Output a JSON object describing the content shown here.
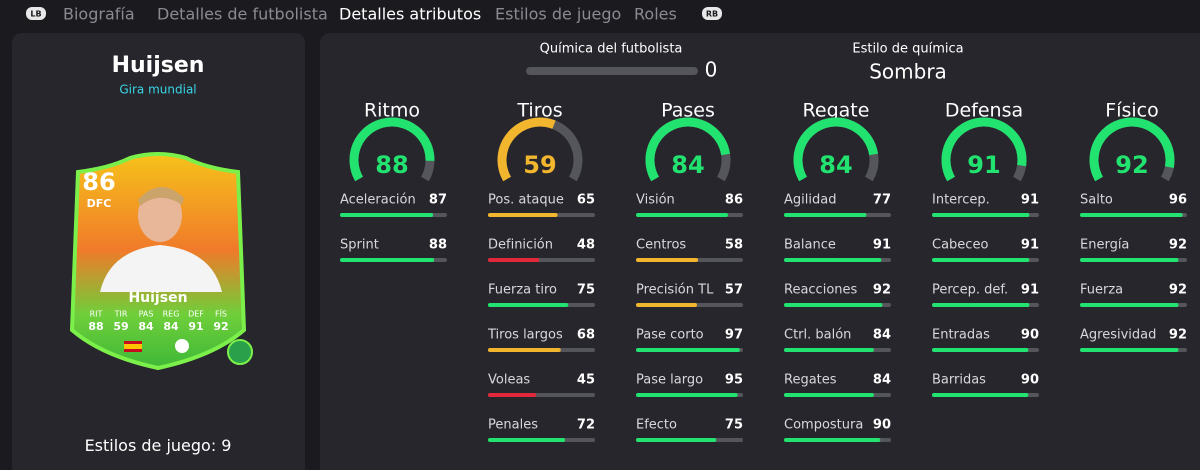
{
  "tabs": {
    "buttons": [
      "LB",
      "RB"
    ],
    "items": [
      "Biografía",
      "Detalles de futbolista",
      "Detalles atributos",
      "Estilos de juego",
      "Roles"
    ],
    "active": 2
  },
  "player": {
    "name": "Huijsen",
    "promo": "Gira mundial",
    "card": {
      "rating": 86,
      "position": "DFC",
      "name": "Huijsen",
      "stat_labels": [
        "RIT",
        "TIR",
        "PAS",
        "REG",
        "DEF",
        "FÍS"
      ],
      "stat_values": [
        88,
        59,
        84,
        84,
        91,
        92
      ]
    },
    "playstyles_label": "Estilos de juego:",
    "playstyles_count": 9
  },
  "chemistry": {
    "label": "Química del futbolista",
    "value": 0,
    "style_label": "Estilo de química",
    "style": "Sombra"
  },
  "categories": [
    {
      "name": "Ritmo",
      "value": 88,
      "color": "#22e36f",
      "attributes": [
        {
          "name": "Aceleración",
          "value": 87,
          "color": "#22e36f"
        },
        {
          "name": "Sprint",
          "value": 88,
          "color": "#22e36f"
        }
      ]
    },
    {
      "name": "Tiros",
      "value": 59,
      "color": "#f1b52e",
      "attributes": [
        {
          "name": "Pos. ataque",
          "value": 65,
          "color": "#f1b52e"
        },
        {
          "name": "Definición",
          "value": 48,
          "color": "#e2283a"
        },
        {
          "name": "Fuerza tiro",
          "value": 75,
          "color": "#22e36f"
        },
        {
          "name": "Tiros largos",
          "value": 68,
          "color": "#f1b52e"
        },
        {
          "name": "Voleas",
          "value": 45,
          "color": "#e2283a"
        },
        {
          "name": "Penales",
          "value": 72,
          "color": "#22e36f"
        }
      ]
    },
    {
      "name": "Pases",
      "value": 84,
      "color": "#22e36f",
      "attributes": [
        {
          "name": "Visión",
          "value": 86,
          "color": "#22e36f"
        },
        {
          "name": "Centros",
          "value": 58,
          "color": "#f1b52e"
        },
        {
          "name": "Precisión TL",
          "value": 57,
          "color": "#f1b52e"
        },
        {
          "name": "Pase corto",
          "value": 97,
          "color": "#22e36f"
        },
        {
          "name": "Pase largo",
          "value": 95,
          "color": "#22e36f"
        },
        {
          "name": "Efecto",
          "value": 75,
          "color": "#22e36f"
        }
      ]
    },
    {
      "name": "Regate",
      "value": 84,
      "color": "#22e36f",
      "attributes": [
        {
          "name": "Agilidad",
          "value": 77,
          "color": "#22e36f"
        },
        {
          "name": "Balance",
          "value": 91,
          "color": "#22e36f"
        },
        {
          "name": "Reacciones",
          "value": 92,
          "color": "#22e36f"
        },
        {
          "name": "Ctrl. balón",
          "value": 84,
          "color": "#22e36f"
        },
        {
          "name": "Regates",
          "value": 84,
          "color": "#22e36f"
        },
        {
          "name": "Compostura",
          "value": 90,
          "color": "#22e36f"
        }
      ]
    },
    {
      "name": "Defensa",
      "value": 91,
      "color": "#22e36f",
      "attributes": [
        {
          "name": "Intercep.",
          "value": 91,
          "color": "#22e36f"
        },
        {
          "name": "Cabeceo",
          "value": 91,
          "color": "#22e36f"
        },
        {
          "name": "Percep. def.",
          "value": 91,
          "color": "#22e36f"
        },
        {
          "name": "Entradas",
          "value": 90,
          "color": "#22e36f"
        },
        {
          "name": "Barridas",
          "value": 90,
          "color": "#22e36f"
        }
      ]
    },
    {
      "name": "Físico",
      "value": 92,
      "color": "#22e36f",
      "attributes": [
        {
          "name": "Salto",
          "value": 96,
          "color": "#22e36f"
        },
        {
          "name": "Energía",
          "value": 92,
          "color": "#22e36f"
        },
        {
          "name": "Fuerza",
          "value": 92,
          "color": "#22e36f"
        },
        {
          "name": "Agresividad",
          "value": 92,
          "color": "#22e36f"
        }
      ]
    }
  ]
}
